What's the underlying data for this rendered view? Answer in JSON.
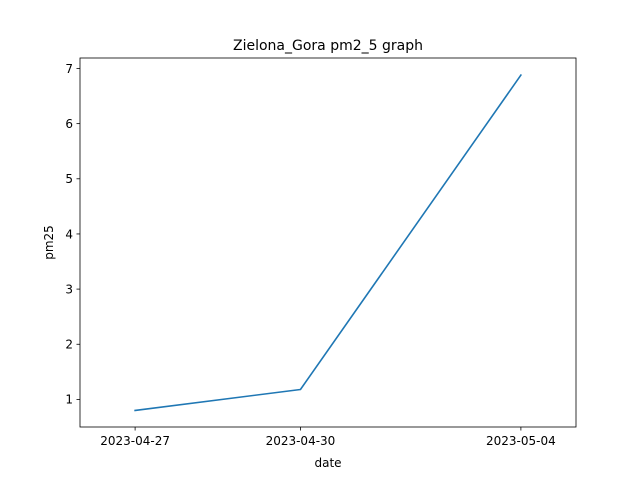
{
  "chart_data": {
    "type": "line",
    "title": "Zielona_Gora pm2_5 graph",
    "xlabel": "date",
    "ylabel": "pm25",
    "x": [
      "2023-04-27",
      "2023-04-30",
      "2023-05-04"
    ],
    "series": [
      {
        "values": [
          0.8,
          1.18,
          6.88
        ],
        "color": "#1f77b4"
      }
    ],
    "xlim": [
      "2023-04-26",
      "2023-05-05"
    ],
    "ylim": [
      0.5,
      7.19
    ],
    "yticks": [
      1,
      2,
      3,
      4,
      5,
      6,
      7
    ],
    "grid": false
  }
}
